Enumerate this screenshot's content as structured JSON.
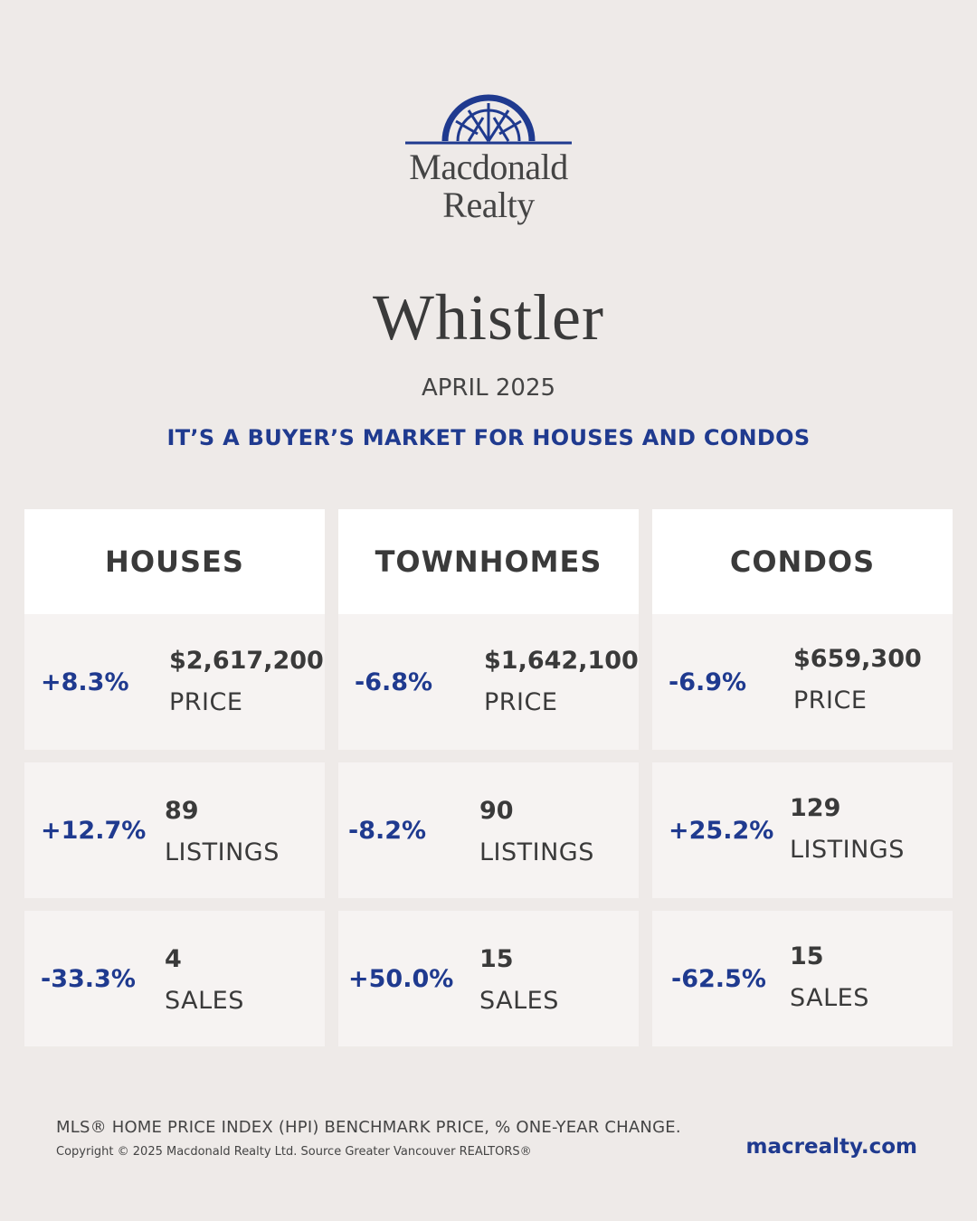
{
  "brand": {
    "logo_icon": "arch-icon",
    "name_line1": "Macdonald",
    "name_line2": "Realty",
    "accent_color": "#1f3a8f"
  },
  "city": "Whistler",
  "month": "APRIL 2025",
  "headline": "IT’S A BUYER’S MARKET FOR HOUSES AND CONDOS",
  "columns": [
    {
      "title": "HOUSES",
      "rows": [
        {
          "change": "+8.3%",
          "value": "$2,617,200",
          "label": "PRICE"
        },
        {
          "change": "+12.7%",
          "value": "89",
          "label": "LISTINGS"
        },
        {
          "change": "-33.3%",
          "value": "4",
          "label": "SALES"
        }
      ]
    },
    {
      "title": "TOWNHOMES",
      "rows": [
        {
          "change": "-6.8%",
          "value": "$1,642,100",
          "label": "PRICE"
        },
        {
          "change": "-8.2%",
          "value": "90",
          "label": "LISTINGS"
        },
        {
          "change": "+50.0%",
          "value": "15",
          "label": "SALES"
        }
      ]
    },
    {
      "title": "CONDOS",
      "rows": [
        {
          "change": "-6.9%",
          "value": "$659,300",
          "label": "PRICE"
        },
        {
          "change": "+25.2%",
          "value": "129",
          "label": "LISTINGS"
        },
        {
          "change": "-62.5%",
          "value": "15",
          "label": "SALES"
        }
      ]
    }
  ],
  "footer": {
    "note": "MLS® HOME PRICE INDEX (HPI) BENCHMARK PRICE, % ONE-YEAR CHANGE.",
    "copyright": "Copyright © 2025 Macdonald Realty Ltd. Source Greater Vancouver REALTORS®",
    "website": "macrealty.com"
  }
}
